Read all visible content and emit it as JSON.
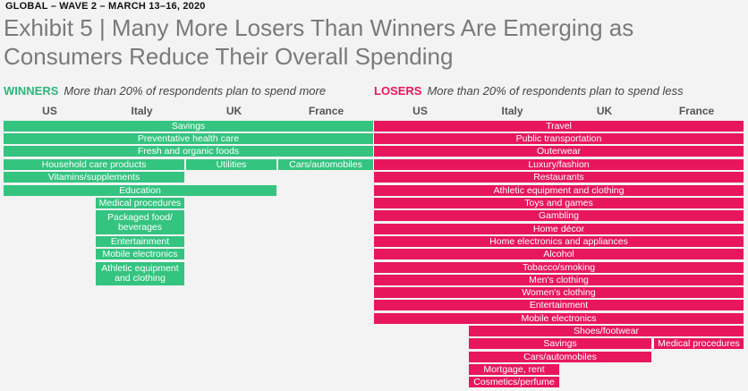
{
  "header": {
    "kicker": "GLOBAL – WAVE 2 – MARCH 13–16, 2020",
    "title": "Exhibit 5 | Many More Losers Than Winners Are Emerging as Consumers Reduce Their Overall Spending"
  },
  "winners": {
    "tag": "WINNERS",
    "description": "More than 20% of respondents plan to spend more",
    "color": "#34c480"
  },
  "losers": {
    "tag": "LOSERS",
    "description": "More than 20% of respondents plan to spend less",
    "color": "#e8175d"
  },
  "countries": [
    "US",
    "Italy",
    "UK",
    "France"
  ],
  "chart_data": {
    "type": "table",
    "title": "Many More Losers Than Winners Are Emerging as Consumers Reduce Their Overall Spending",
    "columns": [
      "US",
      "Italy",
      "UK",
      "France"
    ],
    "winners": [
      {
        "label": "Savings",
        "countries": [
          "US",
          "Italy",
          "UK",
          "France"
        ]
      },
      {
        "label": "Preventative health care",
        "countries": [
          "US",
          "Italy",
          "UK",
          "France"
        ]
      },
      {
        "label": "Fresh and organic foods",
        "countries": [
          "US",
          "Italy",
          "UK",
          "France"
        ]
      },
      {
        "label": "Household care products",
        "countries": [
          "US",
          "Italy"
        ]
      },
      {
        "label": "Utilities",
        "countries": [
          "UK"
        ]
      },
      {
        "label": "Cars/automobiles",
        "countries": [
          "France"
        ]
      },
      {
        "label": "Vitamins/supplements",
        "countries": [
          "US",
          "Italy"
        ]
      },
      {
        "label": "Education",
        "countries": [
          "US",
          "Italy",
          "UK"
        ]
      },
      {
        "label": "Medical procedures",
        "countries": [
          "Italy"
        ]
      },
      {
        "label": "Packaged food/ beverages",
        "countries": [
          "Italy"
        ]
      },
      {
        "label": "Entertainment",
        "countries": [
          "Italy"
        ]
      },
      {
        "label": "Mobile electronics",
        "countries": [
          "Italy"
        ]
      },
      {
        "label": "Athletic equipment and clothing",
        "countries": [
          "Italy"
        ]
      }
    ],
    "losers": [
      {
        "label": "Travel",
        "countries": [
          "US",
          "Italy",
          "UK",
          "France"
        ]
      },
      {
        "label": "Public transportation",
        "countries": [
          "US",
          "Italy",
          "UK",
          "France"
        ]
      },
      {
        "label": "Outerwear",
        "countries": [
          "US",
          "Italy",
          "UK",
          "France"
        ]
      },
      {
        "label": "Luxury/fashion",
        "countries": [
          "US",
          "Italy",
          "UK",
          "France"
        ]
      },
      {
        "label": "Restaurants",
        "countries": [
          "US",
          "Italy",
          "UK",
          "France"
        ]
      },
      {
        "label": "Athletic equipment and clothing",
        "countries": [
          "US",
          "Italy",
          "UK",
          "France"
        ]
      },
      {
        "label": "Toys and games",
        "countries": [
          "US",
          "Italy",
          "UK",
          "France"
        ]
      },
      {
        "label": "Gambling",
        "countries": [
          "US",
          "Italy",
          "UK",
          "France"
        ]
      },
      {
        "label": "Home décor",
        "countries": [
          "US",
          "Italy",
          "UK",
          "France"
        ]
      },
      {
        "label": "Home electronics and appliances",
        "countries": [
          "US",
          "Italy",
          "UK",
          "France"
        ]
      },
      {
        "label": "Alcohol",
        "countries": [
          "US",
          "Italy",
          "UK",
          "France"
        ]
      },
      {
        "label": "Tobacco/smoking",
        "countries": [
          "US",
          "Italy",
          "UK",
          "France"
        ]
      },
      {
        "label": "Men's clothing",
        "countries": [
          "US",
          "Italy",
          "UK",
          "France"
        ]
      },
      {
        "label": "Women's clothing",
        "countries": [
          "US",
          "Italy",
          "UK",
          "France"
        ]
      },
      {
        "label": "Entertainment",
        "countries": [
          "US",
          "Italy",
          "UK",
          "France"
        ]
      },
      {
        "label": "Mobile electronics",
        "countries": [
          "US",
          "Italy",
          "UK",
          "France"
        ]
      },
      {
        "label": "Shoes/footwear",
        "countries": [
          "Italy",
          "UK",
          "France"
        ]
      },
      {
        "label": "Savings",
        "countries": [
          "Italy",
          "UK"
        ]
      },
      {
        "label": "Medical procedures",
        "countries": [
          "France"
        ]
      },
      {
        "label": "Cars/automobiles",
        "countries": [
          "Italy",
          "UK"
        ]
      },
      {
        "label": "Mortgage, rent",
        "countries": [
          "Italy"
        ]
      },
      {
        "label": "Cosmetics/perfume",
        "countries": [
          "Italy"
        ]
      }
    ]
  }
}
